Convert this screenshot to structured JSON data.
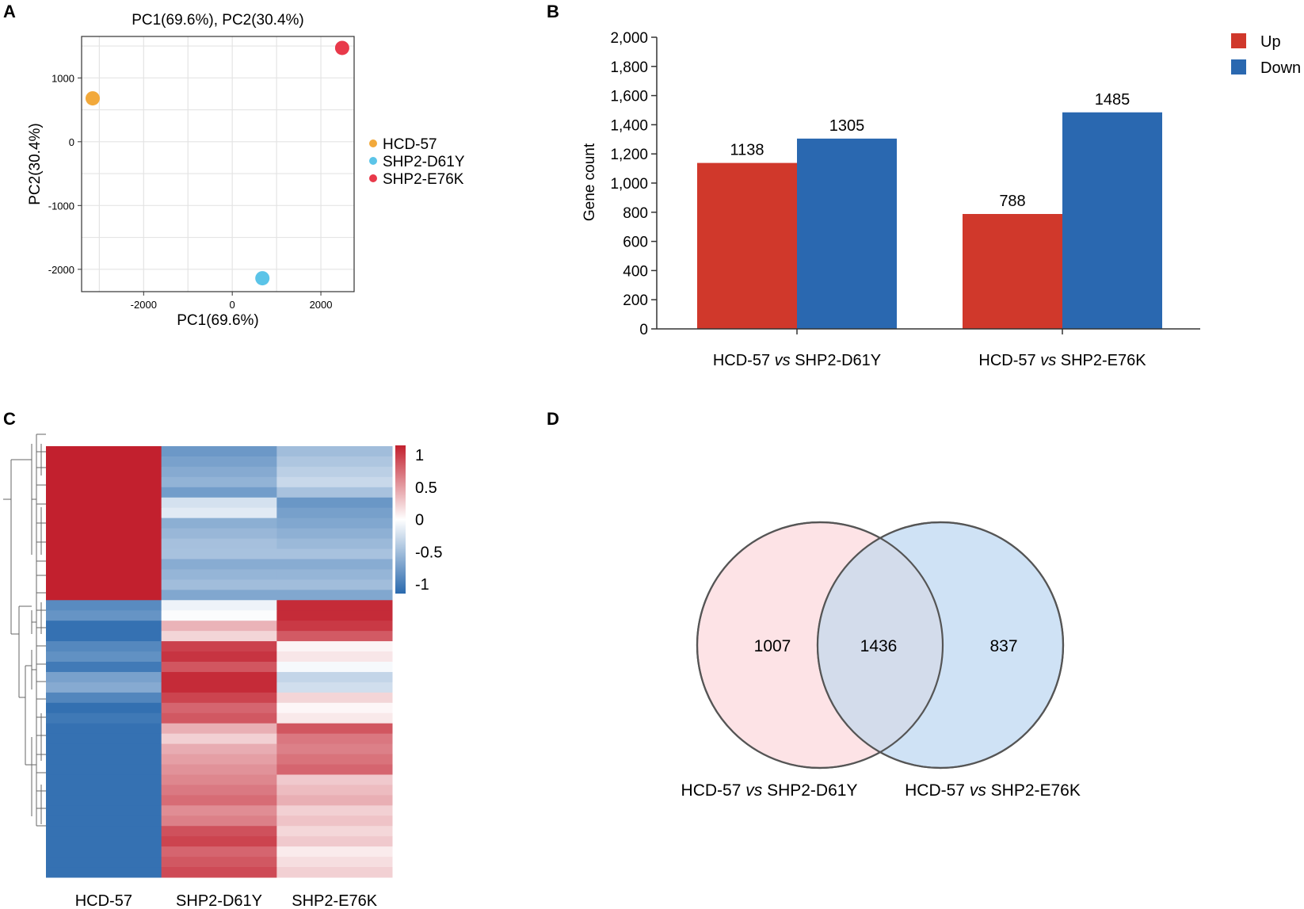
{
  "panels": {
    "a": "A",
    "b": "B",
    "c": "C",
    "d": "D"
  },
  "pca": {
    "title": "PC1(69.6%), PC2(30.4%)",
    "xlabel": "PC1(69.6%)",
    "ylabel": "PC2(30.4%)",
    "xlim": [
      -3400,
      2750
    ],
    "ylim": [
      -2350,
      1650
    ],
    "xticks": [
      -2000,
      0,
      2000
    ],
    "yticks": [
      1000,
      0,
      -1000,
      -2000
    ],
    "grid_x": [
      -3000,
      -2000,
      -1000,
      0,
      1000,
      2000
    ],
    "grid_y": [
      1500,
      1000,
      500,
      0,
      -500,
      -1000,
      -1500,
      -2000
    ],
    "points": [
      {
        "name": "HCD-57",
        "x": -3150,
        "y": 680,
        "color": "#f2a93b"
      },
      {
        "name": "SHP2-D61Y",
        "x": 680,
        "y": -2140,
        "color": "#5bc4e8"
      },
      {
        "name": "SHP2-E76K",
        "x": 2480,
        "y": 1470,
        "color": "#e8394a"
      }
    ]
  },
  "chart_data": [
    {
      "type": "bar",
      "title": "",
      "xlabel": "",
      "ylabel": "Gene count",
      "ylim": [
        0,
        2000
      ],
      "yticks": [
        "0",
        "200",
        "400",
        "600",
        "800",
        "1,000",
        "1,200",
        "1,400",
        "1,600",
        "1,800",
        "2,000"
      ],
      "categories": [
        {
          "prefix": "HCD-57 ",
          "vs": "vs",
          "suffix": " SHP2-D61Y"
        },
        {
          "prefix": "HCD-57 ",
          "vs": "vs",
          "suffix": " SHP2-E76K"
        }
      ],
      "series": [
        {
          "name": "Up",
          "color": "#d0382b",
          "values": [
            1138,
            788
          ]
        },
        {
          "name": "Down",
          "color": "#2a68b0",
          "values": [
            1305,
            1485
          ]
        }
      ],
      "legend": "top-right"
    },
    {
      "type": "heatmap",
      "columns": [
        "HCD-57",
        "SHP2-D61Y",
        "SHP2-E76K"
      ],
      "colorbar": {
        "ticks": [
          "1",
          "0.5",
          "0",
          "-0.5",
          "-1"
        ],
        "min": -1,
        "max": 1
      },
      "blocks": [
        {
          "rows": 5,
          "values": [
            1.0,
            -0.6,
            -0.35
          ]
        },
        {
          "rows": 2,
          "values": [
            1.0,
            -0.2,
            -0.7
          ]
        },
        {
          "rows": 3,
          "values": [
            1.0,
            -0.45,
            -0.5
          ]
        },
        {
          "rows": 5,
          "values": [
            1.0,
            -0.5,
            -0.5
          ]
        },
        {
          "rows": 2,
          "values": [
            -0.75,
            -0.05,
            0.95
          ]
        },
        {
          "rows": 2,
          "values": [
            -0.95,
            0.25,
            0.8
          ]
        },
        {
          "rows": 3,
          "values": [
            -0.8,
            0.85,
            0.05
          ]
        },
        {
          "rows": 2,
          "values": [
            -0.6,
            0.95,
            -0.25
          ]
        },
        {
          "rows": 3,
          "values": [
            -0.9,
            0.75,
            0.1
          ]
        },
        {
          "rows": 2,
          "values": [
            -0.95,
            0.3,
            0.7
          ]
        },
        {
          "rows": 3,
          "values": [
            -0.95,
            0.4,
            0.6
          ]
        },
        {
          "rows": 5,
          "values": [
            -0.95,
            0.6,
            0.3
          ]
        },
        {
          "rows": 5,
          "values": [
            -0.95,
            0.75,
            0.15
          ]
        }
      ]
    },
    {
      "type": "venn",
      "sets": [
        {
          "label_prefix": "HCD-57 ",
          "label_vs": "vs",
          "label_suffix": " SHP2-D61Y",
          "only": 1007,
          "color": "#fde3e6"
        },
        {
          "label_prefix": "HCD-57 ",
          "label_vs": "vs",
          "label_suffix": " SHP2-E76K",
          "only": 837,
          "color": "#cfe2f5"
        }
      ],
      "intersection": 1436
    }
  ]
}
